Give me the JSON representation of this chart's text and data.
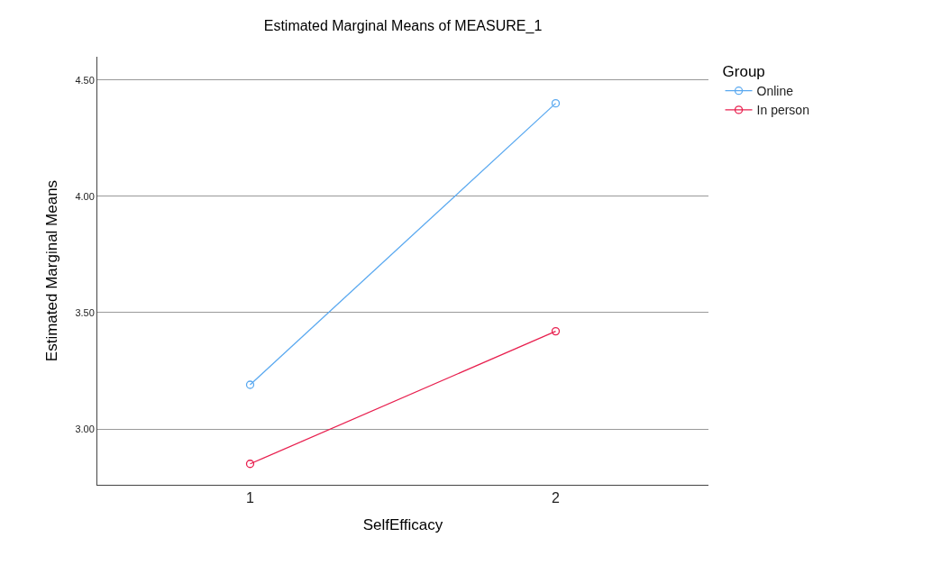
{
  "chart_data": {
    "type": "line",
    "title": "Estimated Marginal Means of MEASURE_1",
    "xlabel": "SelfEfficacy",
    "ylabel": "Estimated Marginal Means",
    "legend_title": "Group",
    "categories": [
      "1",
      "2"
    ],
    "series": [
      {
        "name": "Online",
        "color": "#5aa9f0",
        "values": [
          3.19,
          4.4
        ]
      },
      {
        "name": "In person",
        "color": "#e8204f",
        "values": [
          2.85,
          3.42
        ]
      }
    ],
    "ylim": [
      2.76,
      4.6
    ],
    "yticks": [
      {
        "value": 3.0,
        "label": "3.00"
      },
      {
        "value": 3.5,
        "label": "3.50"
      },
      {
        "value": 4.0,
        "label": "4.00"
      },
      {
        "value": 4.5,
        "label": "4.50"
      }
    ],
    "grid": "y",
    "legend": "top right",
    "marker": "circle",
    "line_style": "solid"
  }
}
